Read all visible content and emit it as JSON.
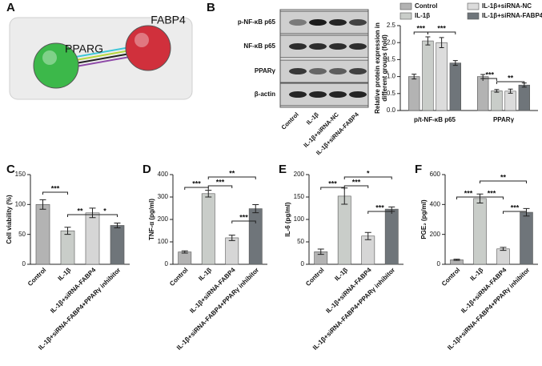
{
  "panel_labels": [
    "A",
    "B",
    "C",
    "D",
    "E",
    "F"
  ],
  "network": {
    "nodes": [
      {
        "label": "PPARG",
        "color": "#3cb84a"
      },
      {
        "label": "FABP4",
        "color": "#d0303c"
      }
    ]
  },
  "blot": {
    "rows": [
      "p-NF-κB p65",
      "NF-κB p65",
      "PPARγ",
      "β-actin"
    ],
    "lanes": [
      "Control",
      "IL-1β",
      "IL-1β+siRNA-NC",
      "IL-1β+siRNA-FABP4"
    ]
  },
  "chart_data": [
    {
      "type": "grouped_bar",
      "categories": [
        "p/t-NF-κB p65",
        "PPARγ"
      ],
      "series": [
        {
          "name": "Control",
          "color": "#b3b3b3",
          "values": [
            1.0,
            1.0
          ],
          "errors": [
            0.07,
            0.06
          ]
        },
        {
          "name": "IL-1β",
          "color": "#c9cdc9",
          "values": [
            2.05,
            0.58
          ],
          "errors": [
            0.12,
            0.04
          ]
        },
        {
          "name": "IL-1β+siRNA-NC",
          "color": "#dcdcdc",
          "values": [
            2.0,
            0.57
          ],
          "errors": [
            0.15,
            0.06
          ]
        },
        {
          "name": "IL-1β+siRNA-FABP4",
          "color": "#6f757a",
          "values": [
            1.4,
            0.75
          ],
          "errors": [
            0.07,
            0.06
          ]
        }
      ],
      "ylim": [
        0,
        2.5
      ],
      "yticks": [
        {
          "value": 0,
          "label": "0.0"
        },
        0.5,
        {
          "value": 1,
          "label": "1.0"
        },
        1.5,
        {
          "value": 2,
          "label": "2.0"
        },
        2.5
      ],
      "y_label": [
        "Relative protein expression in",
        "different groups (fold)"
      ],
      "annotations": [
        "***",
        "***",
        "***",
        "**"
      ]
    },
    {
      "type": "bar",
      "categories": [
        "Control",
        "IL-1β",
        "IL-1β+siRNA-FABP4",
        "IL-1β+siRNA-FABP4+PPARγ inhibitor"
      ],
      "values": [
        100,
        56,
        86,
        65
      ],
      "errors": [
        8,
        6,
        8,
        4
      ],
      "colors": [
        "#b3b3b3",
        "#c9cdc9",
        "#d6d6d6",
        "#6f757a"
      ],
      "ylim": [
        0,
        150
      ],
      "yticks": [
        0,
        50,
        100,
        150
      ],
      "y_label": "Cell viability (%)",
      "annotations": [
        "***",
        "**",
        "*"
      ]
    },
    {
      "type": "bar",
      "categories": [
        "Control",
        "IL-1β",
        "IL-1β+siRNA-FABP4",
        "IL-1β+siRNA-FABP4+PPARγ inhibitor"
      ],
      "values": [
        55,
        315,
        118,
        248
      ],
      "errors": [
        5,
        15,
        12,
        18
      ],
      "colors": [
        "#b3b3b3",
        "#c9cdc9",
        "#d6d6d6",
        "#6f757a"
      ],
      "ylim": [
        0,
        400
      ],
      "yticks": [
        0,
        100,
        200,
        300,
        400
      ],
      "y_label": "TNF-α (pg/ml)",
      "annotations": [
        "***",
        "***",
        "**",
        "***"
      ]
    },
    {
      "type": "bar",
      "categories": [
        "Control",
        "IL-1β",
        "IL-1β+siRNA-FABP4",
        "IL-1β+siRNA-FABP4+PPARγ inhibitor"
      ],
      "values": [
        28,
        152,
        63,
        123
      ],
      "errors": [
        6,
        18,
        8,
        5
      ],
      "colors": [
        "#b3b3b3",
        "#c9cdc9",
        "#d6d6d6",
        "#6f757a"
      ],
      "ylim": [
        0,
        200
      ],
      "yticks": [
        0,
        50,
        100,
        150,
        200
      ],
      "y_label": "IL-6 (pg/ml)",
      "annotations": [
        "***",
        "***",
        "*",
        "***"
      ]
    },
    {
      "type": "bar",
      "categories": [
        "Control",
        "IL-1β",
        "IL-1β+siRNA-FABP4",
        "IL-1β+siRNA-FABP4+PPARγ inhibitor"
      ],
      "values": [
        30,
        440,
        103,
        348
      ],
      "errors": [
        4,
        30,
        10,
        25
      ],
      "colors": [
        "#b3b3b3",
        "#c9cdc9",
        "#d6d6d6",
        "#6f757a"
      ],
      "ylim": [
        0,
        600
      ],
      "yticks": [
        0,
        200,
        400,
        600
      ],
      "y_label": "PGE₂ (pg/ml)",
      "annotations": [
        "***",
        "***",
        "**",
        "***"
      ]
    }
  ]
}
